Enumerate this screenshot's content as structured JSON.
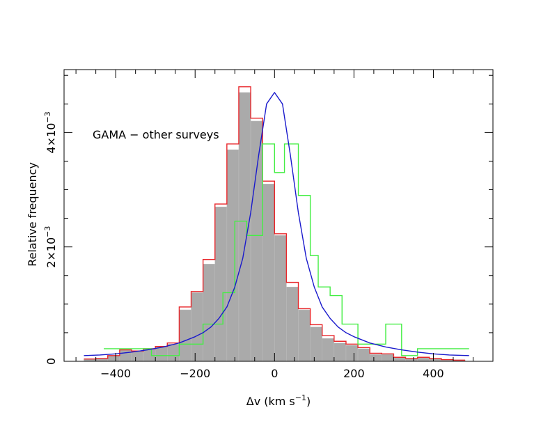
{
  "chart_data": {
    "type": "histogram",
    "annotation": "GAMA − other surveys",
    "xlabel": "Δv (km s",
    "xlabel_sup": "−1",
    "xlabel_close": ")",
    "ylabel": "Relative frequency",
    "xlim": [
      -530,
      550
    ],
    "ylim": [
      0,
      0.0051
    ],
    "x_ticks": [
      {
        "value": -400,
        "label": "−400"
      },
      {
        "value": -200,
        "label": "−200"
      },
      {
        "value": 0,
        "label": "0"
      },
      {
        "value": 200,
        "label": "200"
      },
      {
        "value": 400,
        "label": "400"
      }
    ],
    "y_ticks": [
      {
        "value": 0,
        "label": "0",
        "sup": ""
      },
      {
        "value": 0.002,
        "label": "2×10",
        "sup": "−3"
      },
      {
        "value": 0.004,
        "label": "4×10",
        "sup": "−3"
      }
    ],
    "bin_edges": [
      -480,
      -450,
      -420,
      -390,
      -360,
      -330,
      -300,
      -270,
      -240,
      -210,
      -180,
      -150,
      -120,
      -90,
      -60,
      -30,
      0,
      30,
      60,
      90,
      120,
      150,
      180,
      210,
      240,
      270,
      300,
      330,
      360,
      390,
      420,
      450,
      480
    ],
    "grey_values": [
      4e-05,
      5e-05,
      0.0001,
      0.0002,
      0.00018,
      0.00022,
      0.00025,
      0.0003,
      0.0009,
      0.0012,
      0.0017,
      0.0027,
      0.0037,
      0.0047,
      0.0042,
      0.0031,
      0.0022,
      0.0013,
      0.0009,
      0.0006,
      0.0004,
      0.00032,
      0.00028,
      0.00022,
      0.00012,
      0.00012,
      6e-05,
      4e-05,
      6e-05,
      4e-05,
      3e-05,
      2e-05
    ],
    "series": [
      {
        "color": "#e8262a",
        "bin_edges": [
          -480,
          -450,
          -420,
          -390,
          -360,
          -330,
          -300,
          -270,
          -240,
          -210,
          -180,
          -150,
          -120,
          -90,
          -60,
          -30,
          0,
          30,
          60,
          90,
          120,
          150,
          180,
          210,
          240,
          270,
          300,
          330,
          360,
          390,
          420,
          450,
          480
        ],
        "values": [
          4e-05,
          5e-05,
          0.0001,
          0.0002,
          0.00018,
          0.00022,
          0.00026,
          0.00032,
          0.00095,
          0.00122,
          0.00178,
          0.00275,
          0.0038,
          0.0048,
          0.00425,
          0.00315,
          0.00223,
          0.00138,
          0.00092,
          0.00064,
          0.00045,
          0.00035,
          0.0003,
          0.00024,
          0.00014,
          0.00013,
          7e-05,
          5e-05,
          7e-05,
          5e-05,
          3e-05,
          2e-05
        ]
      },
      {
        "color": "#44ee44",
        "bin_edges": [
          -430,
          -370,
          -310,
          -240,
          -180,
          -130,
          -100,
          -70,
          -30,
          0,
          25,
          60,
          90,
          110,
          140,
          170,
          210,
          245,
          280,
          320,
          360,
          410,
          490
        ],
        "values": [
          0.00022,
          0.00022,
          0.0001,
          0.0003,
          0.00065,
          0.0012,
          0.00245,
          0.0022,
          0.0038,
          0.0033,
          0.0038,
          0.0029,
          0.00185,
          0.0013,
          0.00115,
          0.00065,
          0.0003,
          0.0003,
          0.00065,
          0.0001,
          0.00022,
          0.00022
        ]
      }
    ],
    "fit": {
      "color": "#1a1acc",
      "x_values": [
        -480,
        -440,
        -400,
        -360,
        -320,
        -280,
        -240,
        -200,
        -180,
        -160,
        -140,
        -120,
        -100,
        -80,
        -60,
        -40,
        -20,
        0,
        20,
        40,
        60,
        80,
        100,
        120,
        140,
        160,
        180,
        200,
        240,
        280,
        320,
        360,
        400,
        440,
        490
      ],
      "y_values": [
        0.0001,
        0.00011,
        0.00013,
        0.00016,
        0.0002,
        0.00025,
        0.00032,
        0.00043,
        0.0005,
        0.0006,
        0.00075,
        0.00095,
        0.0013,
        0.0018,
        0.0026,
        0.0036,
        0.0045,
        0.0047,
        0.0045,
        0.0036,
        0.0026,
        0.0018,
        0.0013,
        0.00095,
        0.00075,
        0.0006,
        0.0005,
        0.00043,
        0.00032,
        0.00025,
        0.0002,
        0.00016,
        0.00013,
        0.00011,
        0.0001
      ]
    }
  }
}
